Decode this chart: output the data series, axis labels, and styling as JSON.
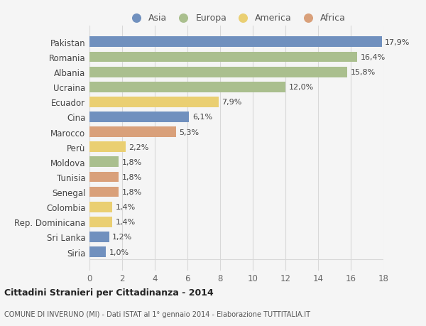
{
  "countries": [
    "Pakistan",
    "Romania",
    "Albania",
    "Ucraina",
    "Ecuador",
    "Cina",
    "Marocco",
    "Perù",
    "Moldova",
    "Tunisia",
    "Senegal",
    "Colombia",
    "Rep. Dominicana",
    "Sri Lanka",
    "Siria"
  ],
  "values": [
    17.9,
    16.4,
    15.8,
    12.0,
    7.9,
    6.1,
    5.3,
    2.2,
    1.8,
    1.8,
    1.8,
    1.4,
    1.4,
    1.2,
    1.0
  ],
  "labels": [
    "17,9%",
    "16,4%",
    "15,8%",
    "12,0%",
    "7,9%",
    "6,1%",
    "5,3%",
    "2,2%",
    "1,8%",
    "1,8%",
    "1,8%",
    "1,4%",
    "1,4%",
    "1,2%",
    "1,0%"
  ],
  "continents": [
    "Asia",
    "Europa",
    "Europa",
    "Europa",
    "America",
    "Asia",
    "Africa",
    "America",
    "Europa",
    "Africa",
    "Africa",
    "America",
    "America",
    "Asia",
    "Asia"
  ],
  "colors": {
    "Asia": "#7090be",
    "Europa": "#aabf8e",
    "America": "#eacf72",
    "Africa": "#d9a07a"
  },
  "legend_order": [
    "Asia",
    "Europa",
    "America",
    "Africa"
  ],
  "xlim": [
    0,
    18
  ],
  "xticks": [
    0,
    2,
    4,
    6,
    8,
    10,
    12,
    14,
    16,
    18
  ],
  "title": "Cittadini Stranieri per Cittadinanza - 2014",
  "subtitle": "COMUNE DI INVERUNO (MI) - Dati ISTAT al 1° gennaio 2014 - Elaborazione TUTTITALIA.IT",
  "bg_color": "#f5f5f5",
  "bar_height": 0.7,
  "grid_color": "#d8d8d8"
}
